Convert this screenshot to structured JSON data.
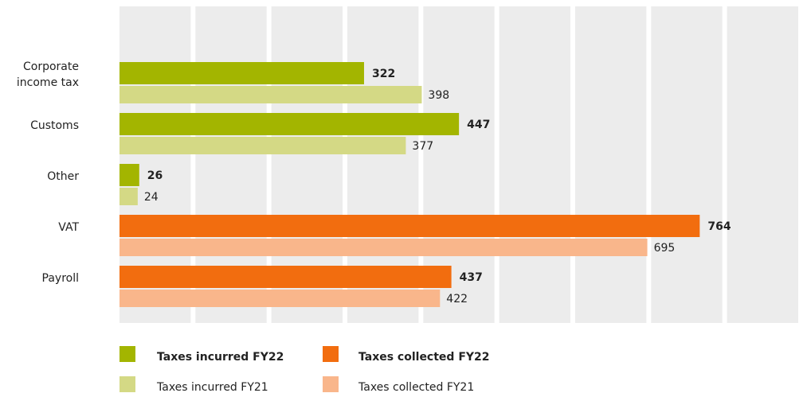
{
  "chart_data": {
    "type": "bar",
    "orientation": "horizontal",
    "categories": [
      "Corporate income tax",
      "Customs",
      "Other",
      "VAT",
      "Payroll"
    ],
    "series": [
      {
        "name": "Taxes incurred FY22",
        "color": "#a3b500",
        "values": [
          322,
          447,
          26,
          null,
          null
        ]
      },
      {
        "name": "Taxes incurred FY21",
        "color": "#d4d985",
        "values": [
          398,
          377,
          24,
          null,
          null
        ]
      },
      {
        "name": "Taxes collected FY22",
        "color": "#f26d0f",
        "values": [
          null,
          null,
          null,
          764,
          437
        ]
      },
      {
        "name": "Taxes collected FY21",
        "color": "#f9b68b",
        "values": [
          null,
          null,
          null,
          695,
          422
        ]
      }
    ],
    "xlim": [
      0,
      900
    ],
    "xticks": [
      0,
      100,
      200,
      300,
      400,
      500,
      600,
      700,
      800,
      900
    ],
    "grid": true
  }
}
